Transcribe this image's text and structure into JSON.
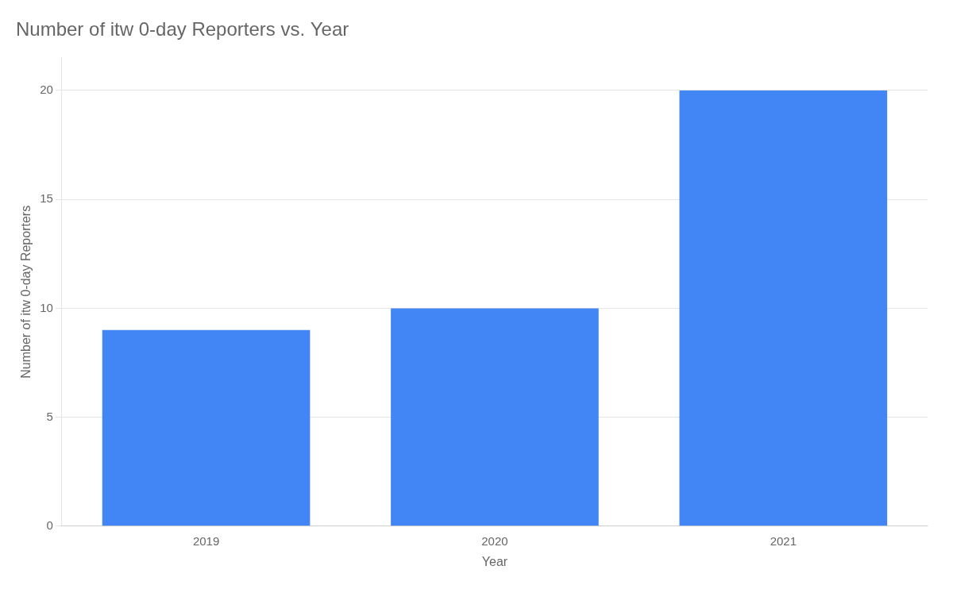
{
  "chart_data": {
    "type": "bar",
    "title": "Number of itw 0-day Reporters vs. Year",
    "xlabel": "Year",
    "ylabel": "Number of itw 0-day Reporters",
    "categories": [
      "2019",
      "2020",
      "2021"
    ],
    "values": [
      9,
      10,
      20
    ],
    "color": "#4285F4",
    "ylim": [
      0,
      21.5
    ],
    "yticks": [
      0,
      5,
      10,
      15,
      20
    ],
    "grid": true
  }
}
